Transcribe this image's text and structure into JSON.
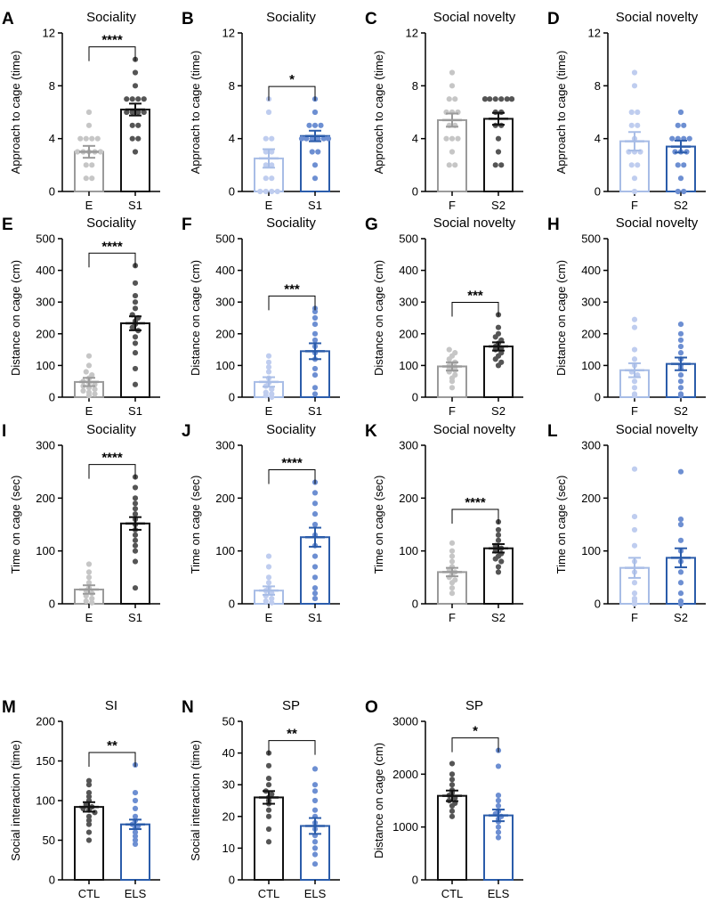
{
  "colors": {
    "black": "#111111",
    "darkdot": "#555555",
    "gray": "#9a9a9a",
    "lightdot": "#c6c6c6",
    "blue": "#2b5caa",
    "bluedot": "#6d8fd2",
    "lightblue": "#a8bde6",
    "lightbluedot": "#bfcdef"
  },
  "chart_data": [
    {
      "panel": "A",
      "type": "bar",
      "title": "Sociality",
      "ylabel": "Approach to cage (time)",
      "ylim": [
        0,
        12
      ],
      "yticks": [
        0,
        4,
        8,
        12
      ],
      "categories": [
        "E",
        "S1"
      ],
      "values": [
        3.0,
        6.2
      ],
      "errors": [
        0.45,
        0.45
      ],
      "styles": [
        "gray",
        "black"
      ],
      "sig": "****",
      "points": [
        [
          6,
          5,
          4,
          4,
          4,
          4,
          3,
          3,
          3,
          3,
          3,
          2,
          2,
          1,
          1
        ],
        [
          10,
          9,
          8,
          7,
          7,
          7,
          7,
          6,
          6,
          6,
          6,
          5,
          5,
          4,
          4,
          3
        ]
      ]
    },
    {
      "panel": "B",
      "type": "bar",
      "title": "Sociality",
      "ylabel": "Approach to cage (time)",
      "ylim": [
        0,
        12
      ],
      "yticks": [
        0,
        4,
        8,
        12
      ],
      "categories": [
        "E",
        "S1"
      ],
      "values": [
        2.5,
        4.2
      ],
      "errors": [
        0.7,
        0.4
      ],
      "styles": [
        "lightblue",
        "blue"
      ],
      "sig": "*",
      "points": [
        [
          7,
          6,
          4,
          4,
          3,
          3,
          2,
          2,
          1,
          1,
          0,
          0,
          0,
          0
        ],
        [
          7,
          6,
          5,
          5,
          5,
          4,
          4,
          4,
          4,
          4,
          4,
          3,
          3,
          2,
          1
        ]
      ]
    },
    {
      "panel": "C",
      "type": "bar",
      "title": "Social novelty",
      "ylabel": "Approach to cage (time)",
      "ylim": [
        0,
        12
      ],
      "yticks": [
        0,
        4,
        8,
        12
      ],
      "categories": [
        "F",
        "S2"
      ],
      "values": [
        5.4,
        5.5
      ],
      "errors": [
        0.5,
        0.45
      ],
      "styles": [
        "gray",
        "black"
      ],
      "sig": "",
      "points": [
        [
          9,
          8,
          7,
          7,
          6,
          6,
          6,
          5,
          5,
          4,
          4,
          4,
          3,
          2,
          2
        ],
        [
          7,
          7,
          7,
          7,
          7,
          7,
          7,
          7,
          6,
          6,
          5,
          5,
          4,
          3,
          2,
          2
        ]
      ]
    },
    {
      "panel": "D",
      "type": "bar",
      "title": "Social novelty",
      "ylabel": "Approach to cage (time)",
      "ylim": [
        0,
        12
      ],
      "yticks": [
        0,
        4,
        8,
        12
      ],
      "categories": [
        "F",
        "S2"
      ],
      "values": [
        3.8,
        3.4
      ],
      "errors": [
        0.7,
        0.45
      ],
      "styles": [
        "lightblue",
        "blue"
      ],
      "sig": "",
      "points": [
        [
          9,
          8,
          6,
          6,
          5,
          5,
          4,
          3,
          3,
          3,
          2,
          2,
          1,
          0
        ],
        [
          6,
          5,
          5,
          4,
          4,
          4,
          4,
          3,
          3,
          3,
          2,
          2,
          1,
          0,
          0
        ]
      ]
    },
    {
      "panel": "E",
      "type": "bar",
      "title": "Sociality",
      "ylabel": "Distance on cage (cm)",
      "ylim": [
        0,
        500
      ],
      "yticks": [
        0,
        100,
        200,
        300,
        400,
        500
      ],
      "categories": [
        "E",
        "S1"
      ],
      "values": [
        48,
        233
      ],
      "errors": [
        13,
        22
      ],
      "styles": [
        "gray",
        "black"
      ],
      "sig": "****",
      "points": [
        [
          130,
          100,
          80,
          70,
          60,
          50,
          45,
          40,
          35,
          30,
          25,
          20,
          15,
          10,
          5
        ],
        [
          415,
          360,
          320,
          300,
          280,
          260,
          250,
          240,
          230,
          220,
          210,
          190,
          170,
          140,
          90,
          40
        ]
      ]
    },
    {
      "panel": "F",
      "type": "bar",
      "title": "Sociality",
      "ylabel": "Distance on cage (cm)",
      "ylim": [
        0,
        500
      ],
      "yticks": [
        0,
        100,
        200,
        300,
        400,
        500
      ],
      "categories": [
        "E",
        "S1"
      ],
      "values": [
        48,
        145
      ],
      "errors": [
        15,
        25
      ],
      "styles": [
        "lightblue",
        "blue"
      ],
      "sig": "***",
      "points": [
        [
          130,
          110,
          95,
          80,
          60,
          45,
          35,
          25,
          15,
          10,
          5,
          0
        ],
        [
          280,
          270,
          250,
          230,
          200,
          180,
          160,
          140,
          120,
          90,
          70,
          30,
          10
        ]
      ]
    },
    {
      "panel": "G",
      "type": "bar",
      "title": "Social novelty",
      "ylabel": "Distance on cage (cm)",
      "ylim": [
        0,
        500
      ],
      "yticks": [
        0,
        100,
        200,
        300,
        400,
        500
      ],
      "categories": [
        "F",
        "S2"
      ],
      "values": [
        97,
        160
      ],
      "errors": [
        13,
        13
      ],
      "styles": [
        "gray",
        "black"
      ],
      "sig": "***",
      "points": [
        [
          150,
          140,
          130,
          120,
          110,
          100,
          95,
          90,
          85,
          80,
          70,
          60,
          50,
          30
        ],
        [
          260,
          220,
          200,
          190,
          180,
          170,
          160,
          155,
          150,
          140,
          130,
          120,
          110,
          100
        ]
      ]
    },
    {
      "panel": "H",
      "type": "bar",
      "title": "Social novelty",
      "ylabel": "Distance on cage (cm)",
      "ylim": [
        0,
        500
      ],
      "yticks": [
        0,
        100,
        200,
        300,
        400,
        500
      ],
      "categories": [
        "F",
        "S2"
      ],
      "values": [
        85,
        105
      ],
      "errors": [
        22,
        20
      ],
      "styles": [
        "lightblue",
        "blue"
      ],
      "sig": "",
      "points": [
        [
          245,
          220,
          150,
          120,
          100,
          80,
          70,
          50,
          30,
          10,
          5
        ],
        [
          230,
          200,
          180,
          160,
          140,
          120,
          100,
          90,
          70,
          50,
          30,
          10,
          5
        ]
      ]
    },
    {
      "panel": "I",
      "type": "bar",
      "title": "Sociality",
      "ylabel": "Time on cage (sec)",
      "ylim": [
        0,
        300
      ],
      "yticks": [
        0,
        100,
        200,
        300
      ],
      "categories": [
        "E",
        "S1"
      ],
      "values": [
        27,
        152
      ],
      "errors": [
        8,
        12
      ],
      "styles": [
        "gray",
        "black"
      ],
      "sig": "****",
      "points": [
        [
          75,
          60,
          50,
          40,
          30,
          25,
          20,
          15,
          10,
          5,
          2
        ],
        [
          240,
          220,
          200,
          190,
          180,
          170,
          160,
          150,
          140,
          130,
          120,
          110,
          100,
          80,
          30
        ]
      ]
    },
    {
      "panel": "J",
      "type": "bar",
      "title": "Sociality",
      "ylabel": "Time on cage (sec)",
      "ylim": [
        0,
        300
      ],
      "yticks": [
        0,
        100,
        200,
        300
      ],
      "categories": [
        "E",
        "S1"
      ],
      "values": [
        25,
        126
      ],
      "errors": [
        8,
        18
      ],
      "styles": [
        "lightblue",
        "blue"
      ],
      "sig": "****",
      "points": [
        [
          90,
          70,
          50,
          40,
          30,
          25,
          20,
          15,
          10,
          5,
          2
        ],
        [
          230,
          210,
          190,
          170,
          150,
          130,
          110,
          90,
          70,
          50,
          30,
          20,
          10
        ]
      ]
    },
    {
      "panel": "K",
      "type": "bar",
      "title": "Social novelty",
      "ylabel": "Time on cage (sec)",
      "ylim": [
        0,
        300
      ],
      "yticks": [
        0,
        100,
        200,
        300
      ],
      "categories": [
        "F",
        "S2"
      ],
      "values": [
        60,
        105
      ],
      "errors": [
        8,
        8
      ],
      "styles": [
        "gray",
        "black"
      ],
      "sig": "****",
      "points": [
        [
          115,
          100,
          90,
          80,
          70,
          65,
          60,
          55,
          50,
          45,
          40,
          30,
          20
        ],
        [
          155,
          140,
          130,
          120,
          110,
          105,
          100,
          95,
          90,
          85,
          80,
          70,
          60
        ]
      ]
    },
    {
      "panel": "L",
      "type": "bar",
      "title": "Social novelty",
      "ylabel": "Time on cage (sec)",
      "ylim": [
        0,
        300
      ],
      "yticks": [
        0,
        100,
        200,
        300
      ],
      "categories": [
        "F",
        "S2"
      ],
      "values": [
        68,
        87
      ],
      "errors": [
        19,
        18
      ],
      "styles": [
        "lightblue",
        "blue"
      ],
      "sig": "",
      "points": [
        [
          255,
          165,
          140,
          110,
          80,
          60,
          40,
          20,
          10,
          5,
          0
        ],
        [
          250,
          160,
          150,
          120,
          100,
          80,
          60,
          40,
          20,
          5,
          0
        ]
      ]
    },
    {
      "panel": "M",
      "type": "bar",
      "title": "SI",
      "ylabel": "Social interaction (time)",
      "ylim": [
        0,
        200
      ],
      "yticks": [
        0,
        50,
        100,
        150,
        200
      ],
      "categories": [
        "CTL",
        "ELS"
      ],
      "values": [
        92,
        70
      ],
      "errors": [
        6,
        6
      ],
      "styles": [
        "black",
        "blue"
      ],
      "sig": "**",
      "points": [
        [
          125,
          120,
          110,
          105,
          100,
          95,
          92,
          90,
          88,
          85,
          80,
          75,
          70,
          60,
          50
        ],
        [
          145,
          110,
          100,
          90,
          80,
          75,
          70,
          68,
          65,
          60,
          55,
          50,
          45
        ]
      ]
    },
    {
      "panel": "N",
      "type": "bar",
      "title": "SP",
      "ylabel": "Social interaction (time)",
      "ylim": [
        0,
        50
      ],
      "yticks": [
        0,
        10,
        20,
        30,
        40,
        50
      ],
      "categories": [
        "CTL",
        "ELS"
      ],
      "values": [
        26,
        17
      ],
      "errors": [
        2,
        2.5
      ],
      "styles": [
        "black",
        "blue"
      ],
      "sig": "**",
      "points": [
        [
          40,
          36,
          32,
          30,
          28,
          27,
          26,
          25,
          24,
          22,
          20,
          16,
          12
        ],
        [
          35,
          30,
          28,
          25,
          22,
          20,
          18,
          16,
          14,
          12,
          10,
          8,
          5
        ]
      ]
    },
    {
      "panel": "O",
      "type": "bar",
      "title": "SP",
      "ylabel": "Distance on cage (cm)",
      "ylim": [
        0,
        3000
      ],
      "yticks": [
        0,
        1000,
        2000,
        3000
      ],
      "categories": [
        "CTL",
        "ELS"
      ],
      "values": [
        1590,
        1220
      ],
      "errors": [
        100,
        110
      ],
      "styles": [
        "black",
        "blue"
      ],
      "sig": "*",
      "points": [
        [
          2200,
          2000,
          1900,
          1800,
          1700,
          1650,
          1600,
          1550,
          1500,
          1450,
          1400,
          1300,
          1200
        ],
        [
          2450,
          2150,
          1600,
          1500,
          1400,
          1300,
          1250,
          1200,
          1150,
          1100,
          1000,
          900,
          800
        ]
      ]
    }
  ]
}
